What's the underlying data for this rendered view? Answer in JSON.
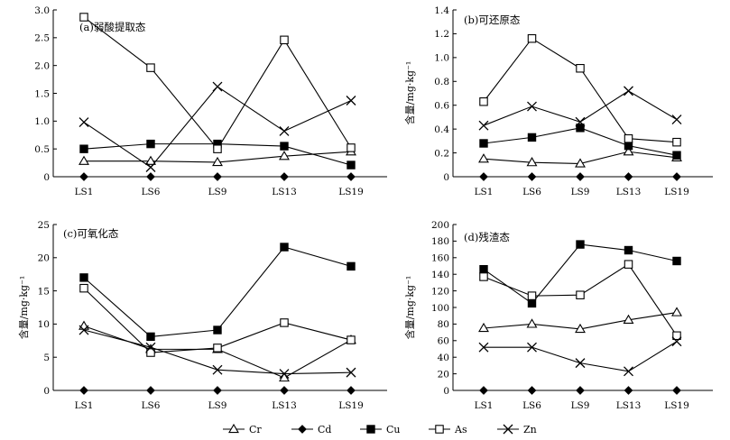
{
  "legend_order": [
    "Cr",
    "Cd",
    "Cu",
    "As",
    "Zn"
  ],
  "chart_data": [
    {
      "type": "line",
      "title": "(a)弱酸提取态",
      "ylabel": "",
      "ylim": [
        0,
        3.0
      ],
      "yticks": [
        "0",
        "0.5",
        "1.0",
        "1.5",
        "2.0",
        "2.5",
        "3.0"
      ],
      "ytick_values": [
        0,
        0.5,
        1.0,
        1.5,
        2.0,
        2.5,
        3.0
      ],
      "categories": [
        "LS1",
        "LS6",
        "LS9",
        "LS13",
        "LS19"
      ],
      "series": [
        {
          "name": "Cr",
          "values": [
            0.28,
            0.28,
            0.26,
            0.37,
            0.45
          ]
        },
        {
          "name": "Cd",
          "values": [
            0,
            0,
            0,
            0,
            0
          ]
        },
        {
          "name": "Cu",
          "values": [
            0.5,
            0.59,
            0.59,
            0.55,
            0.21
          ]
        },
        {
          "name": "As",
          "values": [
            2.87,
            1.96,
            0.5,
            2.46,
            0.52
          ]
        },
        {
          "name": "Zn",
          "values": [
            0.98,
            0.17,
            1.62,
            0.82,
            1.37
          ]
        }
      ]
    },
    {
      "type": "line",
      "title": "(b)可还原态",
      "ylabel": "含量/mg·kg⁻¹",
      "ylim": [
        0,
        1.4
      ],
      "yticks": [
        "0",
        "0.2",
        "0.4",
        "0.6",
        "0.8",
        "1.0",
        "1.2",
        "1.4"
      ],
      "ytick_values": [
        0,
        0.2,
        0.4,
        0.6,
        0.8,
        1.0,
        1.2,
        1.4
      ],
      "categories": [
        "LS1",
        "LS6",
        "LS9",
        "LS13",
        "LS19"
      ],
      "series": [
        {
          "name": "Cr",
          "values": [
            0.15,
            0.12,
            0.11,
            0.21,
            0.16
          ]
        },
        {
          "name": "Cd",
          "values": [
            0,
            0,
            0,
            0,
            0
          ]
        },
        {
          "name": "Cu",
          "values": [
            0.28,
            0.33,
            0.41,
            0.26,
            0.18
          ]
        },
        {
          "name": "As",
          "values": [
            0.63,
            1.16,
            0.91,
            0.32,
            0.29
          ]
        },
        {
          "name": "Zn",
          "values": [
            0.43,
            0.59,
            0.46,
            0.72,
            0.48
          ]
        }
      ]
    },
    {
      "type": "line",
      "title": "(c)可氧化态",
      "ylabel": "含量/mg·kg⁻¹",
      "ylim": [
        0,
        25
      ],
      "yticks": [
        "0",
        "5",
        "10",
        "15",
        "20",
        "25"
      ],
      "ytick_values": [
        0,
        5,
        10,
        15,
        20,
        25
      ],
      "categories": [
        "LS1",
        "LS6",
        "LS9",
        "LS13",
        "LS19"
      ],
      "series": [
        {
          "name": "Cr",
          "values": [
            9.7,
            6.2,
            6.2,
            1.9,
            7.6
          ]
        },
        {
          "name": "Cd",
          "values": [
            0,
            0,
            0,
            0,
            0
          ]
        },
        {
          "name": "Cu",
          "values": [
            17,
            8.1,
            9.1,
            21.6,
            18.7
          ]
        },
        {
          "name": "As",
          "values": [
            15.4,
            5.7,
            6.4,
            10.2,
            7.6
          ]
        },
        {
          "name": "Zn",
          "values": [
            9.1,
            6.5,
            3.1,
            2.5,
            2.7
          ]
        }
      ]
    },
    {
      "type": "line",
      "title": "(d)残渣态",
      "ylabel": "含量/mg·kg⁻¹",
      "ylim": [
        0,
        200
      ],
      "yticks": [
        "0",
        "20",
        "40",
        "60",
        "80",
        "100",
        "120",
        "140",
        "160",
        "180",
        "200"
      ],
      "ytick_values": [
        0,
        20,
        40,
        60,
        80,
        100,
        120,
        140,
        160,
        180,
        200
      ],
      "categories": [
        "LS1",
        "LS6",
        "LS9",
        "LS13",
        "LS19"
      ],
      "series": [
        {
          "name": "Cr",
          "values": [
            75,
            80,
            74,
            85,
            94
          ]
        },
        {
          "name": "Cd",
          "values": [
            0,
            0,
            0,
            0,
            0
          ]
        },
        {
          "name": "Cu",
          "values": [
            146,
            105,
            176,
            169,
            156
          ]
        },
        {
          "name": "As",
          "values": [
            137,
            114,
            115,
            152,
            66
          ]
        },
        {
          "name": "Zn",
          "values": [
            52,
            52,
            33,
            23,
            59
          ]
        }
      ]
    }
  ]
}
